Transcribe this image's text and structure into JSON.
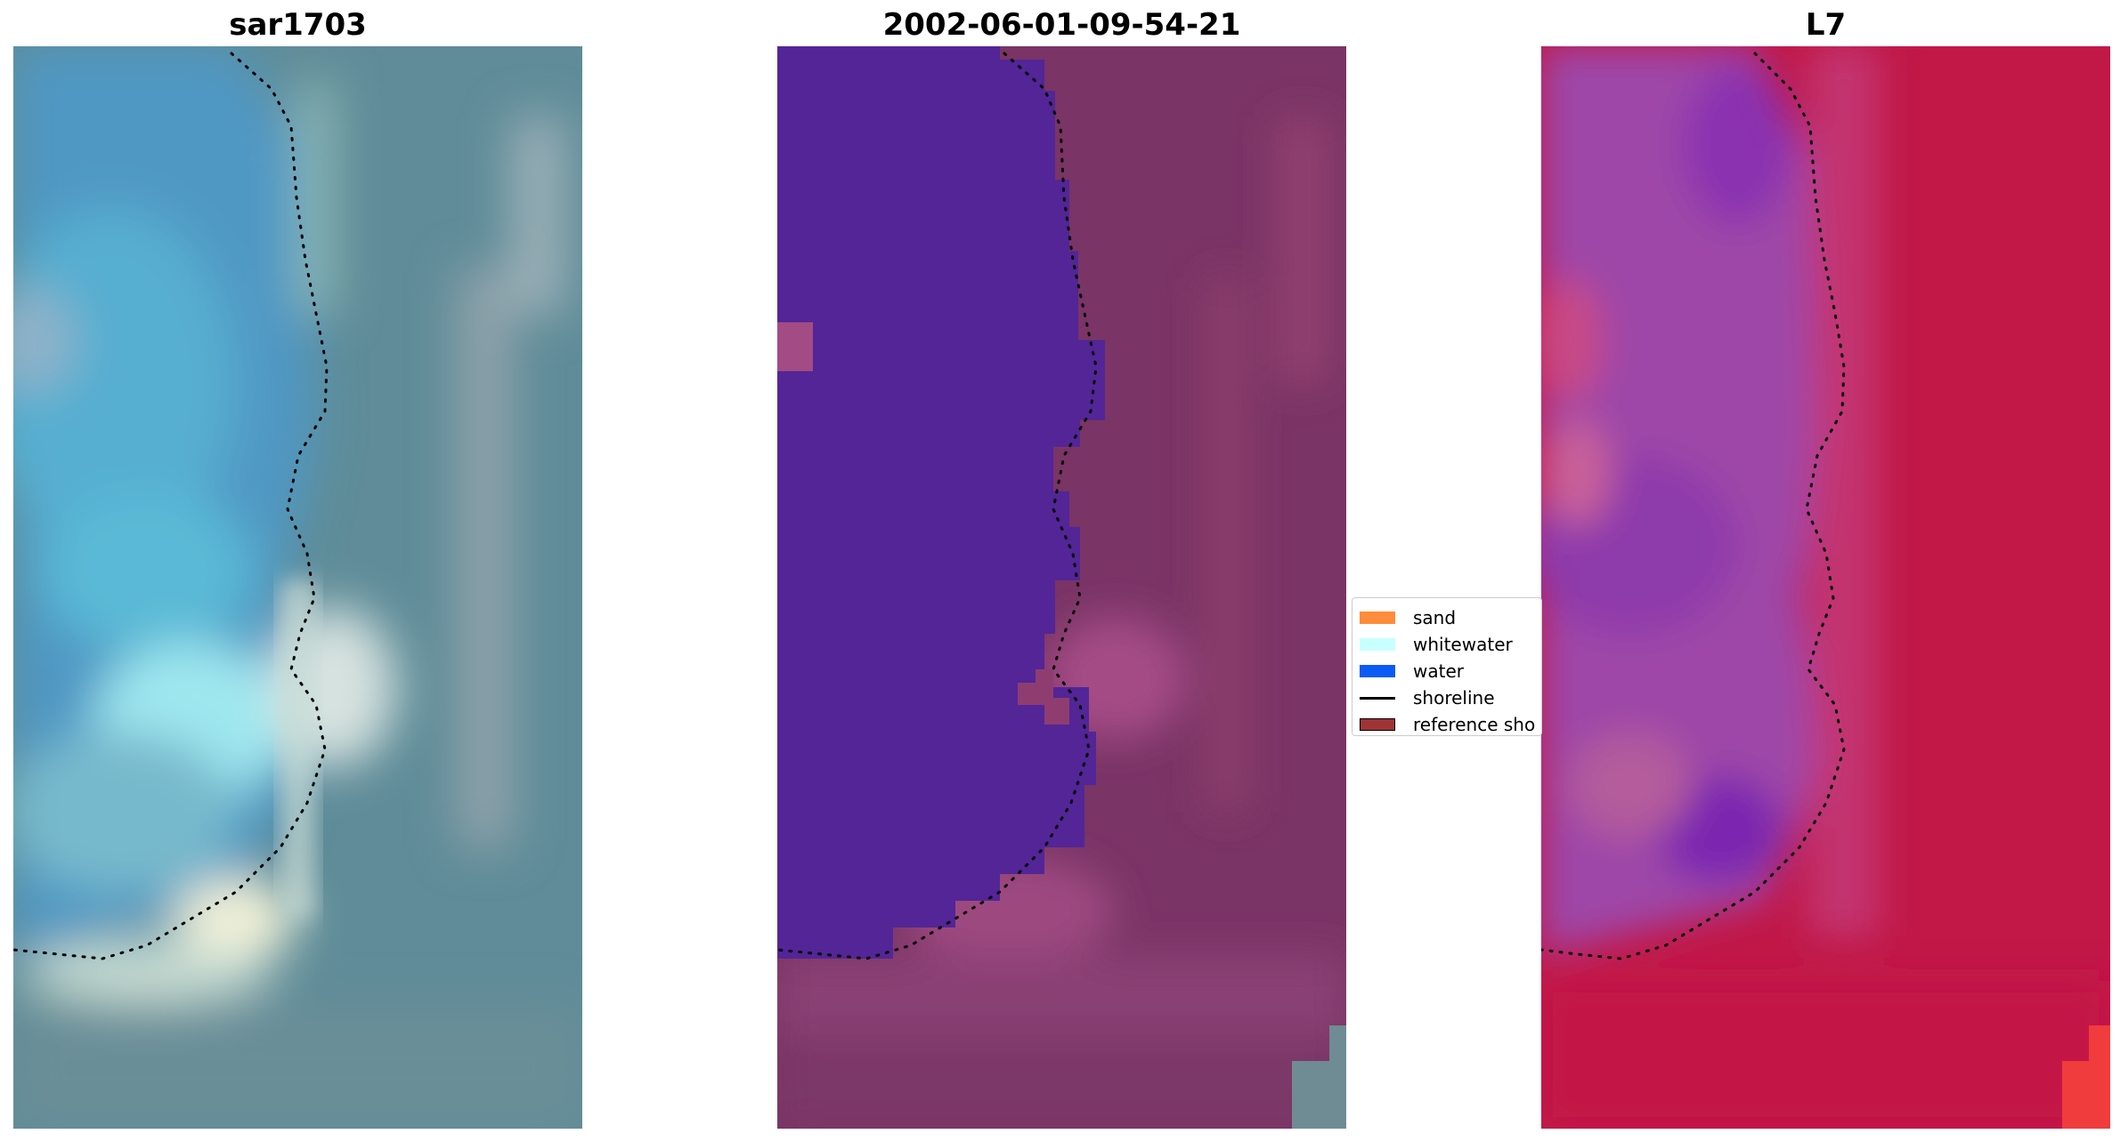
{
  "panels": [
    {
      "title": "sar1703",
      "base_color": "#5d8d9a",
      "shoreline_color": "#000000"
    },
    {
      "title": "2002-06-01-09-54-21",
      "base_color": "#7a3463",
      "water_class_color": "#532597",
      "shoreline_color": "#000000"
    },
    {
      "title": "L7",
      "base_color": "#c11a48",
      "shoreline_color": "#000000"
    }
  ],
  "legend": {
    "items": [
      {
        "label": "sand",
        "color": "#ff8c3a",
        "kind": "patch"
      },
      {
        "label": "whitewater",
        "color": "#c8ffff",
        "kind": "patch"
      },
      {
        "label": "water",
        "color": "#0a5af5",
        "kind": "patch"
      },
      {
        "label": "shoreline",
        "color": "#000000",
        "kind": "line"
      },
      {
        "label": "reference sho",
        "color": "#9e3435",
        "kind": "patch-outlined"
      }
    ]
  }
}
